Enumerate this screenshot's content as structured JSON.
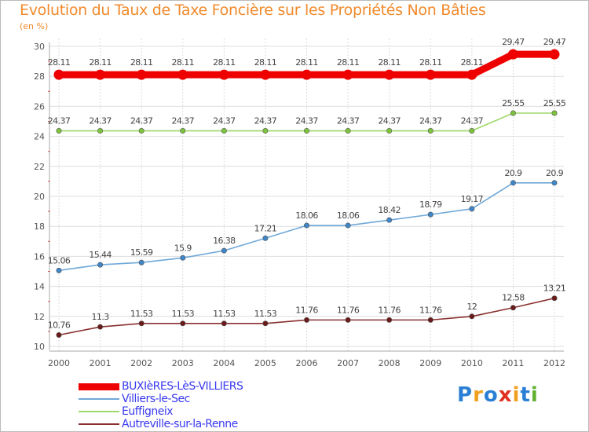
{
  "title": "Evolution du Taux de Taxe Foncière sur les Propriétés Non Bâties",
  "unit_label": "(en %)",
  "logo_text": "Proxiti",
  "logo_letters": [
    "P",
    "r",
    "o",
    "x",
    "i",
    "t",
    "i"
  ],
  "logo_colors": [
    "#2a7fd4",
    "#f0a020",
    "#2a7fd4",
    "#e03020",
    "#f0a020",
    "#2a7fd4",
    "#60b030"
  ],
  "colors": {
    "title": "#f08a2c",
    "grid": "#dddddd",
    "axis": "#555555",
    "legend_text": "#3a3af0"
  },
  "chart_data": {
    "type": "line",
    "title": "Evolution du Taux de Taxe Foncière sur les Propriétés Non Bâties",
    "ylabel": "(en %)",
    "xlabel": "",
    "ylim": [
      10,
      30
    ],
    "y_ticks": [
      10,
      12,
      14,
      16,
      18,
      20,
      22,
      24,
      26,
      28,
      30
    ],
    "x": [
      "2000",
      "2001",
      "2002",
      "2003",
      "2004",
      "2005",
      "2006",
      "2007",
      "2008",
      "2009",
      "2010",
      "2011",
      "2012"
    ],
    "grid": true,
    "legend_position": "bottom-left",
    "series": [
      {
        "name": "BUXIèRES-LèS-VILLIERS",
        "color": "#ee0000",
        "marker_color": "#ee0000",
        "emphasis": "thick",
        "values": [
          28.11,
          28.11,
          28.11,
          28.11,
          28.11,
          28.11,
          28.11,
          28.11,
          28.11,
          28.11,
          28.11,
          29.47,
          29.47
        ],
        "labels": [
          "28.11",
          "28.11",
          "28.11",
          "28.11",
          "28.11",
          "28.11",
          "28.11",
          "28.11",
          "28.11",
          "28.11",
          "28.11",
          "29.47",
          "29.47"
        ]
      },
      {
        "name": "Villiers-le-Sec",
        "color": "#6fa8d8",
        "marker_color": "#3f86c8",
        "emphasis": "normal",
        "values": [
          15.06,
          15.44,
          15.59,
          15.9,
          16.38,
          17.21,
          18.06,
          18.06,
          18.42,
          18.79,
          19.17,
          20.9,
          20.9
        ],
        "labels": [
          "15.06",
          "15.44",
          "15.59",
          "15.9",
          "16.38",
          "17.21",
          "18.06",
          "18.06",
          "18.42",
          "18.79",
          "19.17",
          "20.9",
          "20.9"
        ]
      },
      {
        "name": "Euffigneix",
        "color": "#9fd86a",
        "marker_color": "#7cc43a",
        "emphasis": "normal",
        "values": [
          24.37,
          24.37,
          24.37,
          24.37,
          24.37,
          24.37,
          24.37,
          24.37,
          24.37,
          24.37,
          24.37,
          25.55,
          25.55
        ],
        "labels": [
          "24.37",
          "24.37",
          "24.37",
          "24.37",
          "24.37",
          "24.37",
          "24.37",
          "24.37",
          "24.37",
          "24.37",
          "24.37",
          "25.55",
          "25.55"
        ]
      },
      {
        "name": "Autreville-sur-la-Renne",
        "color": "#8a3030",
        "marker_color": "#6a1a1a",
        "emphasis": "normal",
        "values": [
          10.76,
          11.3,
          11.53,
          11.53,
          11.53,
          11.53,
          11.76,
          11.76,
          11.76,
          11.76,
          12,
          12.58,
          13.21
        ],
        "labels": [
          "10.76",
          "11.3",
          "11.53",
          "11.53",
          "11.53",
          "11.53",
          "11.76",
          "11.76",
          "11.76",
          "11.76",
          "12",
          "12.58",
          "13.21"
        ]
      }
    ]
  }
}
